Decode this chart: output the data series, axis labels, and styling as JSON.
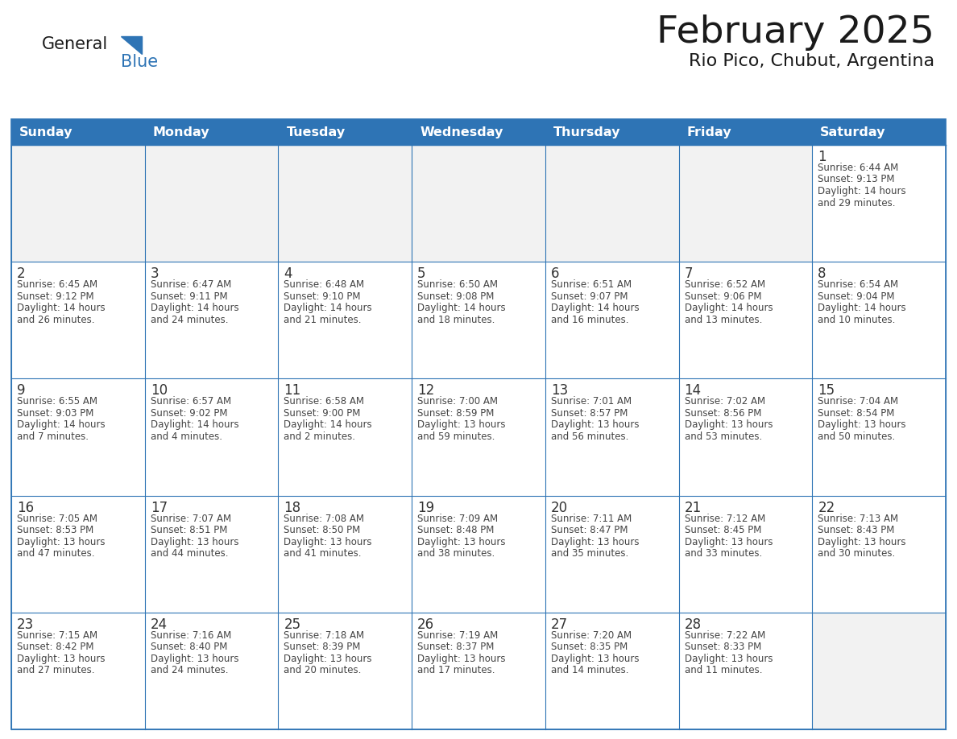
{
  "title": "February 2025",
  "subtitle": "Rio Pico, Chubut, Argentina",
  "days_of_week": [
    "Sunday",
    "Monday",
    "Tuesday",
    "Wednesday",
    "Thursday",
    "Friday",
    "Saturday"
  ],
  "header_bg": "#2E74B5",
  "header_text": "#FFFFFF",
  "cell_bg": "#FFFFFF",
  "cell_bg_empty_week1": "#F2F2F2",
  "cell_border": "#2E74B5",
  "day_num_color": "#333333",
  "info_text_color": "#444444",
  "title_color": "#1a1a1a",
  "logo_general_color": "#1a1a1a",
  "logo_blue_color": "#2E74B5",
  "weeks": [
    [
      {
        "day": null,
        "info": "",
        "empty_bg": true
      },
      {
        "day": null,
        "info": "",
        "empty_bg": true
      },
      {
        "day": null,
        "info": "",
        "empty_bg": true
      },
      {
        "day": null,
        "info": "",
        "empty_bg": true
      },
      {
        "day": null,
        "info": "",
        "empty_bg": true
      },
      {
        "day": null,
        "info": "",
        "empty_bg": true
      },
      {
        "day": 1,
        "info": "Sunrise: 6:44 AM\nSunset: 9:13 PM\nDaylight: 14 hours\nand 29 minutes.",
        "empty_bg": false
      }
    ],
    [
      {
        "day": 2,
        "info": "Sunrise: 6:45 AM\nSunset: 9:12 PM\nDaylight: 14 hours\nand 26 minutes.",
        "empty_bg": false
      },
      {
        "day": 3,
        "info": "Sunrise: 6:47 AM\nSunset: 9:11 PM\nDaylight: 14 hours\nand 24 minutes.",
        "empty_bg": false
      },
      {
        "day": 4,
        "info": "Sunrise: 6:48 AM\nSunset: 9:10 PM\nDaylight: 14 hours\nand 21 minutes.",
        "empty_bg": false
      },
      {
        "day": 5,
        "info": "Sunrise: 6:50 AM\nSunset: 9:08 PM\nDaylight: 14 hours\nand 18 minutes.",
        "empty_bg": false
      },
      {
        "day": 6,
        "info": "Sunrise: 6:51 AM\nSunset: 9:07 PM\nDaylight: 14 hours\nand 16 minutes.",
        "empty_bg": false
      },
      {
        "day": 7,
        "info": "Sunrise: 6:52 AM\nSunset: 9:06 PM\nDaylight: 14 hours\nand 13 minutes.",
        "empty_bg": false
      },
      {
        "day": 8,
        "info": "Sunrise: 6:54 AM\nSunset: 9:04 PM\nDaylight: 14 hours\nand 10 minutes.",
        "empty_bg": false
      }
    ],
    [
      {
        "day": 9,
        "info": "Sunrise: 6:55 AM\nSunset: 9:03 PM\nDaylight: 14 hours\nand 7 minutes.",
        "empty_bg": false
      },
      {
        "day": 10,
        "info": "Sunrise: 6:57 AM\nSunset: 9:02 PM\nDaylight: 14 hours\nand 4 minutes.",
        "empty_bg": false
      },
      {
        "day": 11,
        "info": "Sunrise: 6:58 AM\nSunset: 9:00 PM\nDaylight: 14 hours\nand 2 minutes.",
        "empty_bg": false
      },
      {
        "day": 12,
        "info": "Sunrise: 7:00 AM\nSunset: 8:59 PM\nDaylight: 13 hours\nand 59 minutes.",
        "empty_bg": false
      },
      {
        "day": 13,
        "info": "Sunrise: 7:01 AM\nSunset: 8:57 PM\nDaylight: 13 hours\nand 56 minutes.",
        "empty_bg": false
      },
      {
        "day": 14,
        "info": "Sunrise: 7:02 AM\nSunset: 8:56 PM\nDaylight: 13 hours\nand 53 minutes.",
        "empty_bg": false
      },
      {
        "day": 15,
        "info": "Sunrise: 7:04 AM\nSunset: 8:54 PM\nDaylight: 13 hours\nand 50 minutes.",
        "empty_bg": false
      }
    ],
    [
      {
        "day": 16,
        "info": "Sunrise: 7:05 AM\nSunset: 8:53 PM\nDaylight: 13 hours\nand 47 minutes.",
        "empty_bg": false
      },
      {
        "day": 17,
        "info": "Sunrise: 7:07 AM\nSunset: 8:51 PM\nDaylight: 13 hours\nand 44 minutes.",
        "empty_bg": false
      },
      {
        "day": 18,
        "info": "Sunrise: 7:08 AM\nSunset: 8:50 PM\nDaylight: 13 hours\nand 41 minutes.",
        "empty_bg": false
      },
      {
        "day": 19,
        "info": "Sunrise: 7:09 AM\nSunset: 8:48 PM\nDaylight: 13 hours\nand 38 minutes.",
        "empty_bg": false
      },
      {
        "day": 20,
        "info": "Sunrise: 7:11 AM\nSunset: 8:47 PM\nDaylight: 13 hours\nand 35 minutes.",
        "empty_bg": false
      },
      {
        "day": 21,
        "info": "Sunrise: 7:12 AM\nSunset: 8:45 PM\nDaylight: 13 hours\nand 33 minutes.",
        "empty_bg": false
      },
      {
        "day": 22,
        "info": "Sunrise: 7:13 AM\nSunset: 8:43 PM\nDaylight: 13 hours\nand 30 minutes.",
        "empty_bg": false
      }
    ],
    [
      {
        "day": 23,
        "info": "Sunrise: 7:15 AM\nSunset: 8:42 PM\nDaylight: 13 hours\nand 27 minutes.",
        "empty_bg": false
      },
      {
        "day": 24,
        "info": "Sunrise: 7:16 AM\nSunset: 8:40 PM\nDaylight: 13 hours\nand 24 minutes.",
        "empty_bg": false
      },
      {
        "day": 25,
        "info": "Sunrise: 7:18 AM\nSunset: 8:39 PM\nDaylight: 13 hours\nand 20 minutes.",
        "empty_bg": false
      },
      {
        "day": 26,
        "info": "Sunrise: 7:19 AM\nSunset: 8:37 PM\nDaylight: 13 hours\nand 17 minutes.",
        "empty_bg": false
      },
      {
        "day": 27,
        "info": "Sunrise: 7:20 AM\nSunset: 8:35 PM\nDaylight: 13 hours\nand 14 minutes.",
        "empty_bg": false
      },
      {
        "day": 28,
        "info": "Sunrise: 7:22 AM\nSunset: 8:33 PM\nDaylight: 13 hours\nand 11 minutes.",
        "empty_bg": false
      },
      {
        "day": null,
        "info": "",
        "empty_bg": true
      }
    ]
  ],
  "figsize": [
    11.88,
    9.18
  ],
  "dpi": 100
}
